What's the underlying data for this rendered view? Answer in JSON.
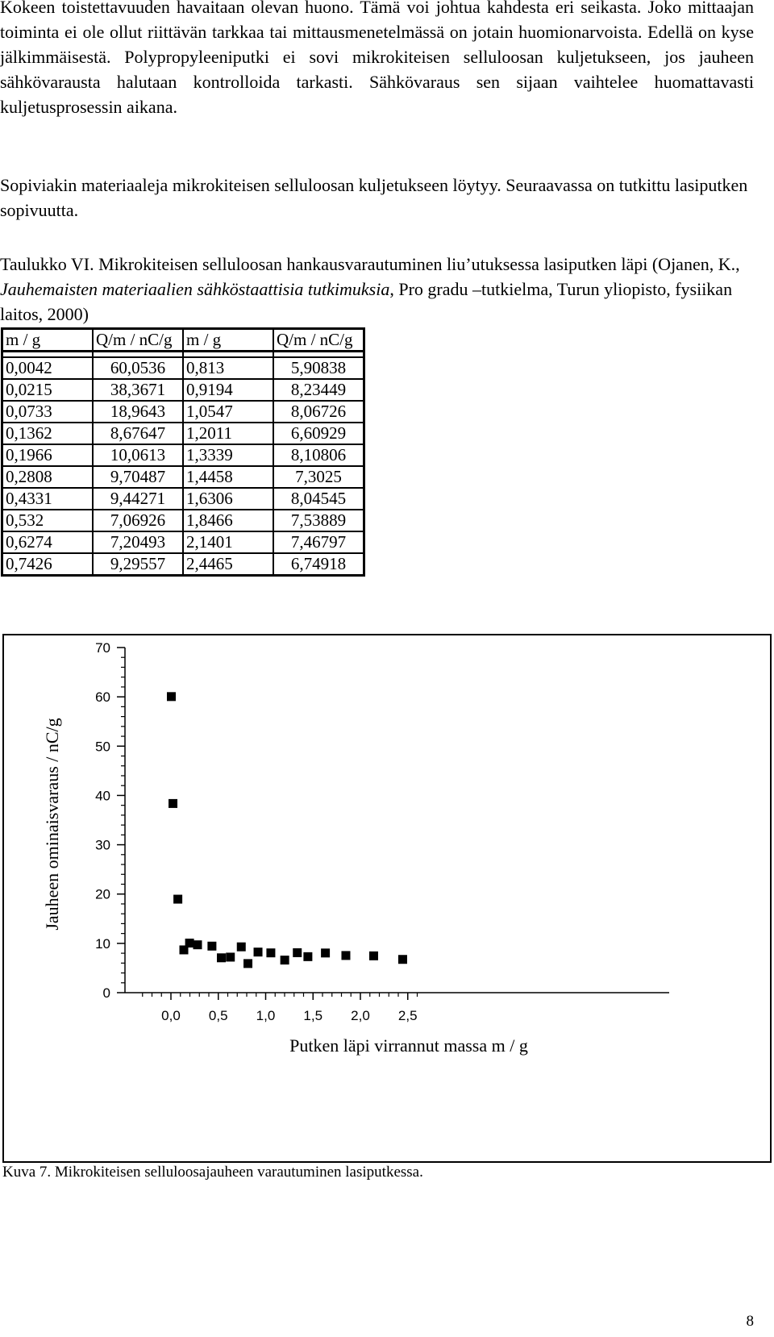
{
  "paragraphs": {
    "p1": "Kokeen toistettavuuden havaitaan olevan huono. Tämä voi johtua kahdesta eri seikasta. Joko mittaajan toiminta ei ole ollut riittävän tarkkaa tai mittausmenetelmässä on jotain huomionarvoista. Edellä on kyse jälkimmäisestä. Polypropyleeniputki ei sovi mikrokiteisen selluloosan kuljetukseen, jos jauheen sähkövarausta halutaan kontrolloida tarkasti. Sähkövaraus sen sijaan vaihtelee huomattavasti kuljetusprosessin aikana.",
    "p2": "Sopiviakin materiaaleja mikrokiteisen selluloosan kuljetukseen löytyy. Seuraavassa on tutkittu lasiputken sopivuutta."
  },
  "table_caption": {
    "part1": "Taulukko VI. Mikrokiteisen selluloosan hankausvarautuminen liu’utuksessa lasiputken läpi (Ojanen, K., ",
    "italic": "Jauhemaisten materiaalien sähköstaattisia tutkimuksia",
    "part2": ", Pro gradu –tutkielma, Turun yliopisto, fysiikan laitos, 2000)"
  },
  "table": {
    "headers": [
      "m / g",
      "Q/m / nC/g",
      "m / g",
      "Q/m / nC/g"
    ],
    "rows": [
      [
        "0,0042",
        "60,0536",
        "0,813",
        "5,90838"
      ],
      [
        "0,0215",
        "38,3671",
        "0,9194",
        "8,23449"
      ],
      [
        "0,0733",
        "18,9643",
        "1,0547",
        "8,06726"
      ],
      [
        "0,1362",
        "8,67647",
        "1,2011",
        "6,60929"
      ],
      [
        "0,1966",
        "10,0613",
        "1,3339",
        "8,10806"
      ],
      [
        "0,2808",
        "9,70487",
        "1,4458",
        "7,3025"
      ],
      [
        "0,4331",
        "9,44271",
        "1,6306",
        "8,04545"
      ],
      [
        "0,532",
        "7,06926",
        "1,8466",
        "7,53889"
      ],
      [
        "0,6274",
        "7,20493",
        "2,1401",
        "7,46797"
      ],
      [
        "0,7426",
        "9,29557",
        "2,4465",
        "6,74918"
      ]
    ]
  },
  "chart_data": {
    "type": "scatter",
    "xlabel": "Putken läpi virrannut massa m / g",
    "ylabel": "Jauheen ominaisvaraus / nC/g",
    "xlim": [
      -0.3,
      2.7
    ],
    "ylim": [
      0,
      70
    ],
    "xticks": [
      "0,0",
      "0,5",
      "1,0",
      "1,5",
      "2,0",
      "2,5"
    ],
    "xtick_values": [
      0,
      0.5,
      1.0,
      1.5,
      2.0,
      2.5
    ],
    "yticks": [
      "0",
      "10",
      "20",
      "30",
      "40",
      "50",
      "60",
      "70"
    ],
    "ytick_values": [
      0,
      10,
      20,
      30,
      40,
      50,
      60,
      70
    ],
    "grid": false,
    "marker": "square",
    "points": [
      [
        0.0042,
        60.0536
      ],
      [
        0.0215,
        38.3671
      ],
      [
        0.0733,
        18.9643
      ],
      [
        0.1362,
        8.67647
      ],
      [
        0.1966,
        10.0613
      ],
      [
        0.2808,
        9.70487
      ],
      [
        0.4331,
        9.44271
      ],
      [
        0.532,
        7.06926
      ],
      [
        0.6274,
        7.20493
      ],
      [
        0.7426,
        9.29557
      ],
      [
        0.813,
        5.90838
      ],
      [
        0.9194,
        8.23449
      ],
      [
        1.0547,
        8.06726
      ],
      [
        1.2011,
        6.60929
      ],
      [
        1.3339,
        8.10806
      ],
      [
        1.4458,
        7.3025
      ],
      [
        1.6306,
        8.04545
      ],
      [
        1.8466,
        7.53889
      ],
      [
        2.1401,
        7.46797
      ],
      [
        2.4465,
        6.74918
      ]
    ]
  },
  "figure_caption": "Kuva 7. Mikrokiteisen selluloosajauheen varautuminen lasiputkessa.",
  "page_number": "8"
}
